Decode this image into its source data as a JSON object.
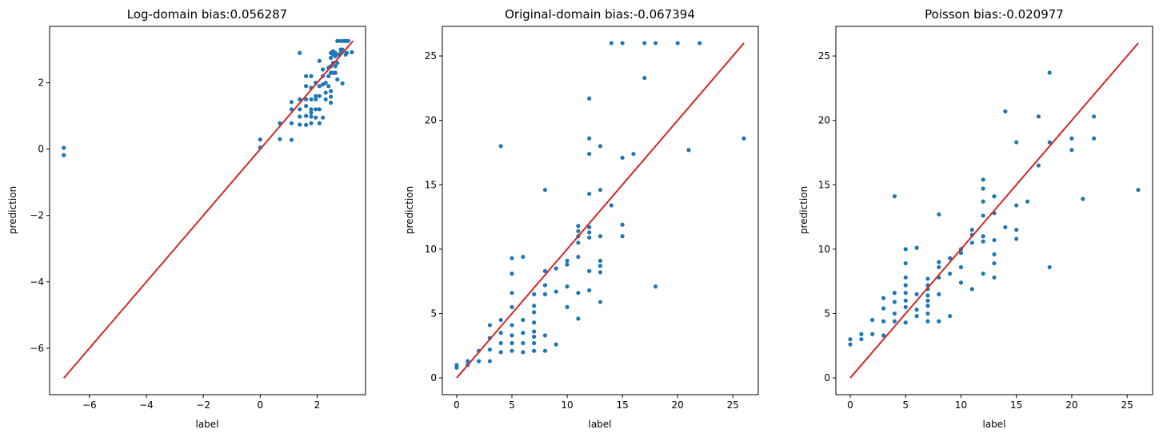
{
  "chart_data": [
    {
      "type": "scatter",
      "title": "Log-domain bias:0.056287",
      "xlabel": "label",
      "ylabel": "prediction",
      "xlim": [
        -7.4,
        3.7
      ],
      "ylim": [
        -7.4,
        3.7
      ],
      "xticks": [
        -6,
        -4,
        -2,
        0,
        2
      ],
      "yticks": [
        -6,
        -4,
        -2,
        0,
        2
      ],
      "tick_labels_x": [
        "−6",
        "−4",
        "−2",
        "0",
        "2"
      ],
      "tick_labels_y": [
        "−6",
        "−4",
        "−2",
        "0",
        "2"
      ],
      "grid": false,
      "point_color": "#1f77b4",
      "line_color": "#d62728",
      "line": {
        "x": [
          -6.9,
          3.26
        ],
        "y": [
          -6.9,
          3.26
        ]
      },
      "points": [
        [
          -6.9,
          0.04
        ],
        [
          -6.9,
          -0.18
        ],
        [
          0.0,
          0.29
        ],
        [
          0.0,
          0.05
        ],
        [
          0.69,
          0.78
        ],
        [
          0.69,
          0.3
        ],
        [
          1.1,
          1.2
        ],
        [
          1.1,
          1.42
        ],
        [
          1.1,
          0.78
        ],
        [
          1.1,
          0.28
        ],
        [
          1.39,
          2.9
        ],
        [
          1.39,
          1.5
        ],
        [
          1.39,
          1.2
        ],
        [
          1.39,
          0.98
        ],
        [
          1.39,
          0.74
        ],
        [
          1.61,
          2.2
        ],
        [
          1.61,
          1.9
        ],
        [
          1.61,
          1.5
        ],
        [
          1.61,
          1.3
        ],
        [
          1.61,
          1.0
        ],
        [
          1.61,
          0.73
        ],
        [
          1.79,
          2.2
        ],
        [
          1.79,
          1.85
        ],
        [
          1.79,
          1.5
        ],
        [
          1.79,
          1.2
        ],
        [
          1.79,
          0.98
        ],
        [
          1.79,
          0.78
        ],
        [
          1.95,
          2.0
        ],
        [
          1.95,
          1.5
        ],
        [
          1.95,
          1.2
        ],
        [
          1.95,
          0.95
        ],
        [
          1.95,
          1.6
        ],
        [
          2.08,
          2.66
        ],
        [
          2.08,
          1.9
        ],
        [
          2.08,
          1.6
        ],
        [
          2.08,
          1.2
        ],
        [
          2.08,
          0.78
        ],
        [
          2.2,
          1.95
        ],
        [
          2.2,
          2.2
        ],
        [
          2.2,
          0.95
        ],
        [
          2.3,
          2.0
        ],
        [
          2.3,
          1.5
        ],
        [
          2.4,
          2.45
        ],
        [
          2.4,
          2.2
        ],
        [
          2.4,
          1.9
        ],
        [
          2.48,
          2.9
        ],
        [
          2.48,
          2.75
        ],
        [
          2.48,
          2.5
        ],
        [
          2.48,
          2.3
        ],
        [
          2.48,
          1.58
        ],
        [
          2.48,
          1.75
        ],
        [
          2.56,
          2.95
        ],
        [
          2.56,
          2.6
        ],
        [
          2.56,
          2.3
        ],
        [
          2.56,
          2.85
        ],
        [
          2.64,
          2.3
        ],
        [
          2.64,
          2.5
        ],
        [
          2.64,
          2.8
        ],
        [
          2.64,
          2.9
        ],
        [
          2.71,
          2.6
        ],
        [
          2.71,
          2.1
        ],
        [
          2.71,
          3.26
        ],
        [
          2.77,
          2.85
        ],
        [
          2.83,
          2.9
        ],
        [
          2.83,
          3.0
        ],
        [
          2.83,
          3.26
        ],
        [
          2.89,
          1.98
        ],
        [
          2.89,
          3.0
        ],
        [
          2.94,
          3.26
        ],
        [
          3.0,
          3.26
        ],
        [
          3.04,
          2.9
        ],
        [
          3.09,
          3.26
        ],
        [
          3.22,
          2.92
        ],
        [
          3.0,
          2.85
        ],
        [
          2.2,
          2.4
        ],
        [
          1.79,
          1.1
        ],
        [
          2.48,
          1.4
        ],
        [
          2.3,
          1.7
        ]
      ]
    },
    {
      "type": "scatter",
      "title": "Original-domain bias:-0.067394",
      "xlabel": "label",
      "ylabel": "prediction",
      "xlim": [
        -1.3,
        27.3
      ],
      "ylim": [
        -1.3,
        27.3
      ],
      "xticks": [
        0,
        5,
        10,
        15,
        20,
        25
      ],
      "yticks": [
        0,
        5,
        10,
        15,
        20,
        25
      ],
      "tick_labels_x": [
        "0",
        "5",
        "10",
        "15",
        "20",
        "25"
      ],
      "tick_labels_y": [
        "0",
        "5",
        "10",
        "15",
        "20",
        "25"
      ],
      "grid": false,
      "point_color": "#1f77b4",
      "line_color": "#d62728",
      "line": {
        "x": [
          0,
          26
        ],
        "y": [
          0,
          26
        ]
      },
      "points": [
        [
          0,
          1.0
        ],
        [
          0,
          0.8
        ],
        [
          1,
          1.3
        ],
        [
          1,
          1.0
        ],
        [
          2,
          2.1
        ],
        [
          2,
          1.3
        ],
        [
          3,
          4.1
        ],
        [
          3,
          3.1
        ],
        [
          3,
          2.2
        ],
        [
          3,
          1.3
        ],
        [
          4,
          18.0
        ],
        [
          4,
          4.5
        ],
        [
          4,
          3.5
        ],
        [
          4,
          2.7
        ],
        [
          4,
          2.0
        ],
        [
          5,
          9.3
        ],
        [
          5,
          8.1
        ],
        [
          5,
          6.6
        ],
        [
          5,
          5.5
        ],
        [
          5,
          4.1
        ],
        [
          5,
          3.3
        ],
        [
          5,
          2.7
        ],
        [
          5,
          2.1
        ],
        [
          6,
          9.4
        ],
        [
          6,
          4.5
        ],
        [
          6,
          3.5
        ],
        [
          6,
          2.7
        ],
        [
          6,
          2.0
        ],
        [
          7,
          6.5
        ],
        [
          7,
          5.6
        ],
        [
          7,
          5.1
        ],
        [
          7,
          4.3
        ],
        [
          7,
          3.6
        ],
        [
          7,
          3.2
        ],
        [
          7,
          2.7
        ],
        [
          7,
          2.1
        ],
        [
          8,
          14.6
        ],
        [
          8,
          8.3
        ],
        [
          8,
          7.2
        ],
        [
          8,
          6.5
        ],
        [
          8,
          3.3
        ],
        [
          8,
          2.1
        ],
        [
          9,
          8.5
        ],
        [
          9,
          6.7
        ],
        [
          9,
          2.6
        ],
        [
          10,
          9.1
        ],
        [
          10,
          8.8
        ],
        [
          10,
          7.1
        ],
        [
          10,
          5.5
        ],
        [
          11,
          11.8
        ],
        [
          11,
          11.4
        ],
        [
          11,
          11.0
        ],
        [
          11,
          10.5
        ],
        [
          11,
          9.4
        ],
        [
          11,
          6.6
        ],
        [
          11,
          4.6
        ],
        [
          12,
          21.7
        ],
        [
          12,
          18.6
        ],
        [
          12,
          17.4
        ],
        [
          12,
          14.3
        ],
        [
          12,
          11.7
        ],
        [
          12,
          11.3
        ],
        [
          12,
          10.9
        ],
        [
          12,
          8.3
        ],
        [
          12,
          6.8
        ],
        [
          13,
          18.0
        ],
        [
          13,
          14.6
        ],
        [
          13,
          11.0
        ],
        [
          13,
          9.1
        ],
        [
          13,
          8.7
        ],
        [
          13,
          8.2
        ],
        [
          13,
          5.9
        ],
        [
          14,
          26.0
        ],
        [
          14,
          13.4
        ],
        [
          15,
          26.0
        ],
        [
          15,
          17.1
        ],
        [
          15,
          11.9
        ],
        [
          15,
          11.0
        ],
        [
          16,
          17.4
        ],
        [
          17,
          26.0
        ],
        [
          17,
          23.3
        ],
        [
          18,
          26.0
        ],
        [
          18,
          7.1
        ],
        [
          20,
          26.0
        ],
        [
          21,
          17.7
        ],
        [
          22,
          26.0
        ],
        [
          26,
          18.6
        ]
      ]
    },
    {
      "type": "scatter",
      "title": "Poisson bias:-0.020977",
      "xlabel": "label",
      "ylabel": "prediction",
      "xlim": [
        -1.3,
        27.3
      ],
      "ylim": [
        -1.3,
        27.3
      ],
      "xticks": [
        0,
        5,
        10,
        15,
        20,
        25
      ],
      "yticks": [
        0,
        5,
        10,
        15,
        20,
        25
      ],
      "tick_labels_x": [
        "0",
        "5",
        "10",
        "15",
        "20",
        "25"
      ],
      "tick_labels_y": [
        "0",
        "5",
        "10",
        "15",
        "20",
        "25"
      ],
      "grid": false,
      "point_color": "#1f77b4",
      "line_color": "#d62728",
      "line": {
        "x": [
          0,
          26
        ],
        "y": [
          0,
          26
        ]
      },
      "points": [
        [
          0,
          3.0
        ],
        [
          0,
          2.6
        ],
        [
          1,
          3.4
        ],
        [
          1,
          3.0
        ],
        [
          2,
          4.5
        ],
        [
          2,
          3.4
        ],
        [
          3,
          6.2
        ],
        [
          3,
          5.4
        ],
        [
          3,
          4.4
        ],
        [
          3,
          3.3
        ],
        [
          4,
          14.1
        ],
        [
          4,
          6.6
        ],
        [
          4,
          5.9
        ],
        [
          4,
          5.0
        ],
        [
          4,
          4.4
        ],
        [
          5,
          10.0
        ],
        [
          5,
          8.9
        ],
        [
          5,
          7.8
        ],
        [
          5,
          7.2
        ],
        [
          5,
          6.6
        ],
        [
          5,
          6.0
        ],
        [
          5,
          5.5
        ],
        [
          5,
          4.3
        ],
        [
          6,
          10.1
        ],
        [
          6,
          6.5
        ],
        [
          6,
          5.3
        ],
        [
          6,
          4.8
        ],
        [
          7,
          7.7
        ],
        [
          7,
          7.2
        ],
        [
          7,
          6.9
        ],
        [
          7,
          6.4
        ],
        [
          7,
          6.0
        ],
        [
          7,
          5.6
        ],
        [
          7,
          5.0
        ],
        [
          7,
          4.4
        ],
        [
          8,
          12.7
        ],
        [
          8,
          9.0
        ],
        [
          8,
          8.6
        ],
        [
          8,
          7.8
        ],
        [
          8,
          6.5
        ],
        [
          8,
          4.4
        ],
        [
          9,
          9.3
        ],
        [
          9,
          8.1
        ],
        [
          9,
          4.8
        ],
        [
          10,
          10.0
        ],
        [
          10,
          9.7
        ],
        [
          10,
          8.6
        ],
        [
          10,
          7.4
        ],
        [
          11,
          11.5
        ],
        [
          11,
          11.1
        ],
        [
          11,
          10.5
        ],
        [
          11,
          6.9
        ],
        [
          12,
          15.4
        ],
        [
          12,
          14.7
        ],
        [
          12,
          13.7
        ],
        [
          12,
          12.6
        ],
        [
          12,
          11.0
        ],
        [
          12,
          10.6
        ],
        [
          12,
          8.1
        ],
        [
          13,
          14.1
        ],
        [
          13,
          12.8
        ],
        [
          13,
          10.7
        ],
        [
          13,
          9.6
        ],
        [
          13,
          8.9
        ],
        [
          13,
          7.8
        ],
        [
          14,
          20.7
        ],
        [
          14,
          11.7
        ],
        [
          15,
          18.3
        ],
        [
          15,
          13.4
        ],
        [
          15,
          11.5
        ],
        [
          15,
          10.8
        ],
        [
          16,
          13.7
        ],
        [
          17,
          20.3
        ],
        [
          17,
          16.5
        ],
        [
          18,
          23.7
        ],
        [
          18,
          18.3
        ],
        [
          18,
          8.6
        ],
        [
          20,
          18.6
        ],
        [
          20,
          17.7
        ],
        [
          21,
          13.9
        ],
        [
          22,
          20.3
        ],
        [
          22,
          18.6
        ],
        [
          26,
          14.6
        ]
      ]
    }
  ]
}
